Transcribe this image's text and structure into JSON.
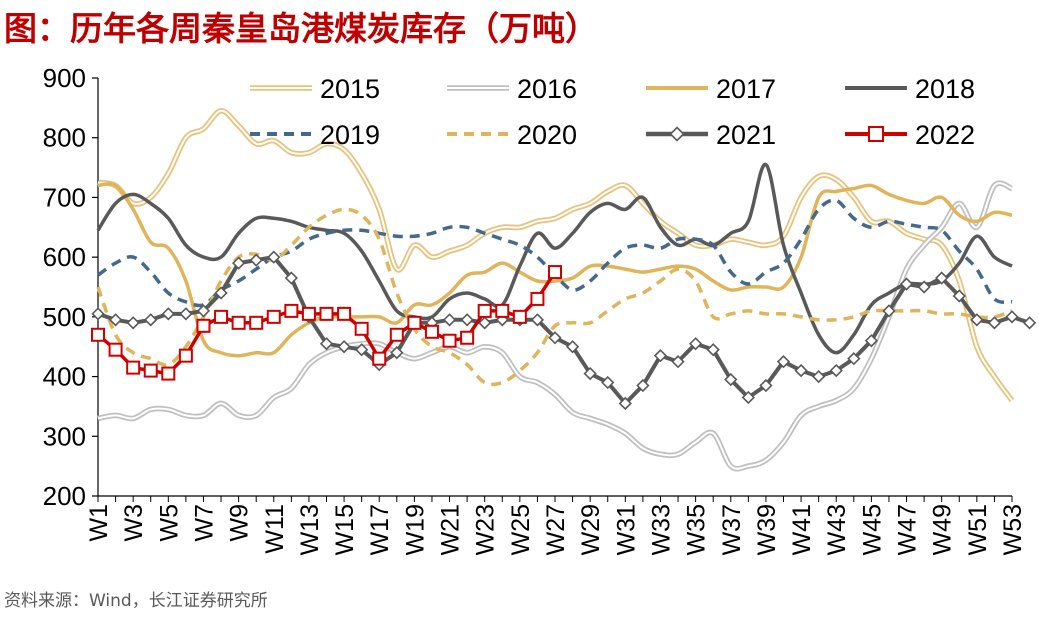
{
  "title": "图：历年各周秦皇岛港煤炭库存（万吨）",
  "source": "资料来源：Wind，长江证券研究所",
  "chart_data": {
    "type": "line",
    "title": "图：历年各周秦皇岛港煤炭库存（万吨）",
    "xlabel": "",
    "ylabel": "",
    "ylim": [
      200,
      900
    ],
    "yticks": [
      200,
      300,
      400,
      500,
      600,
      700,
      800,
      900
    ],
    "x_tick_labels": [
      "W1",
      "W3",
      "W5",
      "W7",
      "W9",
      "W11",
      "W13",
      "W15",
      "W17",
      "W19",
      "W21",
      "W23",
      "W25",
      "W27",
      "W29",
      "W31",
      "W33",
      "W35",
      "W37",
      "W39",
      "W41",
      "W43",
      "W45",
      "W47",
      "W49",
      "W51",
      "W53"
    ],
    "grid": false,
    "legend_position": "top",
    "series": [
      {
        "name": "2015",
        "color": "#E6C27A",
        "style": "double",
        "values": [
          725,
          720,
          690,
          700,
          740,
          800,
          815,
          845,
          820,
          790,
          795,
          775,
          775,
          790,
          780,
          740,
          680,
          580,
          620,
          600,
          610,
          620,
          640,
          650,
          650,
          660,
          665,
          680,
          690,
          710,
          720,
          690,
          660,
          640,
          620,
          620,
          630,
          625,
          620,
          635,
          700,
          735,
          730,
          700,
          660,
          660,
          640,
          630,
          620,
          560,
          450,
          400,
          360
        ]
      },
      {
        "name": "2016",
        "color": "#BFBFBF",
        "style": "double",
        "values": [
          330,
          335,
          330,
          345,
          345,
          335,
          335,
          355,
          335,
          335,
          365,
          380,
          420,
          440,
          450,
          455,
          455,
          440,
          430,
          440,
          450,
          440,
          450,
          440,
          400,
          390,
          370,
          340,
          330,
          320,
          305,
          280,
          270,
          270,
          290,
          305,
          250,
          250,
          260,
          290,
          335,
          350,
          360,
          380,
          430,
          500,
          580,
          620,
          650,
          690,
          650,
          720,
          715
        ]
      },
      {
        "name": "2017",
        "color": "#E0B45A",
        "style": "solid",
        "values": [
          720,
          720,
          680,
          625,
          615,
          560,
          460,
          440,
          435,
          440,
          440,
          470,
          490,
          500,
          500,
          500,
          500,
          490,
          520,
          520,
          540,
          570,
          575,
          590,
          575,
          560,
          560,
          565,
          585,
          585,
          580,
          575,
          580,
          585,
          580,
          560,
          545,
          550,
          550,
          550,
          600,
          700,
          710,
          715,
          720,
          705,
          695,
          690,
          700,
          670,
          660,
          675,
          670
        ]
      },
      {
        "name": "2018",
        "color": "#595959",
        "style": "solid",
        "values": [
          645,
          690,
          705,
          690,
          665,
          620,
          600,
          600,
          640,
          665,
          665,
          660,
          650,
          645,
          640,
          610,
          560,
          510,
          500,
          500,
          530,
          540,
          530,
          520,
          585,
          640,
          615,
          640,
          675,
          690,
          680,
          700,
          650,
          620,
          630,
          620,
          640,
          660,
          755,
          620,
          540,
          470,
          440,
          470,
          520,
          540,
          555,
          555,
          560,
          590,
          635,
          600,
          585
        ]
      },
      {
        "name": "2019",
        "color": "#44698A",
        "style": "dashed",
        "values": [
          570,
          590,
          600,
          575,
          540,
          525,
          520,
          545,
          560,
          580,
          600,
          610,
          630,
          640,
          645,
          645,
          640,
          635,
          635,
          640,
          650,
          650,
          640,
          630,
          620,
          600,
          570,
          545,
          560,
          590,
          615,
          620,
          615,
          630,
          630,
          620,
          575,
          555,
          575,
          590,
          630,
          680,
          695,
          665,
          650,
          660,
          655,
          650,
          645,
          610,
          580,
          530,
          525
        ]
      },
      {
        "name": "2020",
        "color": "#E0B45A",
        "style": "dashed",
        "values": [
          550,
          470,
          440,
          430,
          420,
          450,
          500,
          560,
          600,
          605,
          595,
          620,
          650,
          670,
          680,
          670,
          630,
          540,
          480,
          450,
          440,
          420,
          390,
          390,
          410,
          440,
          485,
          490,
          490,
          510,
          530,
          540,
          560,
          580,
          560,
          500,
          505,
          510,
          505,
          505,
          500,
          495,
          495,
          500,
          510,
          510,
          510,
          510,
          505,
          505,
          500,
          500,
          510
        ]
      },
      {
        "name": "2021",
        "color": "#595959",
        "style": "diamond",
        "values": [
          505,
          495,
          490,
          495,
          505,
          505,
          510,
          540,
          590,
          595,
          600,
          565,
          500,
          455,
          450,
          445,
          420,
          440,
          490,
          490,
          495,
          495,
          490,
          495,
          495,
          495,
          465,
          450,
          405,
          390,
          355,
          385,
          435,
          425,
          455,
          445,
          395,
          365,
          385,
          425,
          410,
          400,
          410,
          430,
          460,
          510,
          555,
          550,
          565,
          535,
          495,
          490,
          500,
          490
        ]
      },
      {
        "name": "2022",
        "color": "#D00000",
        "style": "square",
        "values": [
          470,
          445,
          415,
          410,
          405,
          435,
          485,
          500,
          490,
          490,
          500,
          510,
          505,
          505,
          505,
          480,
          430,
          470,
          490,
          475,
          460,
          465,
          510,
          510,
          500,
          530,
          575
        ]
      }
    ]
  }
}
